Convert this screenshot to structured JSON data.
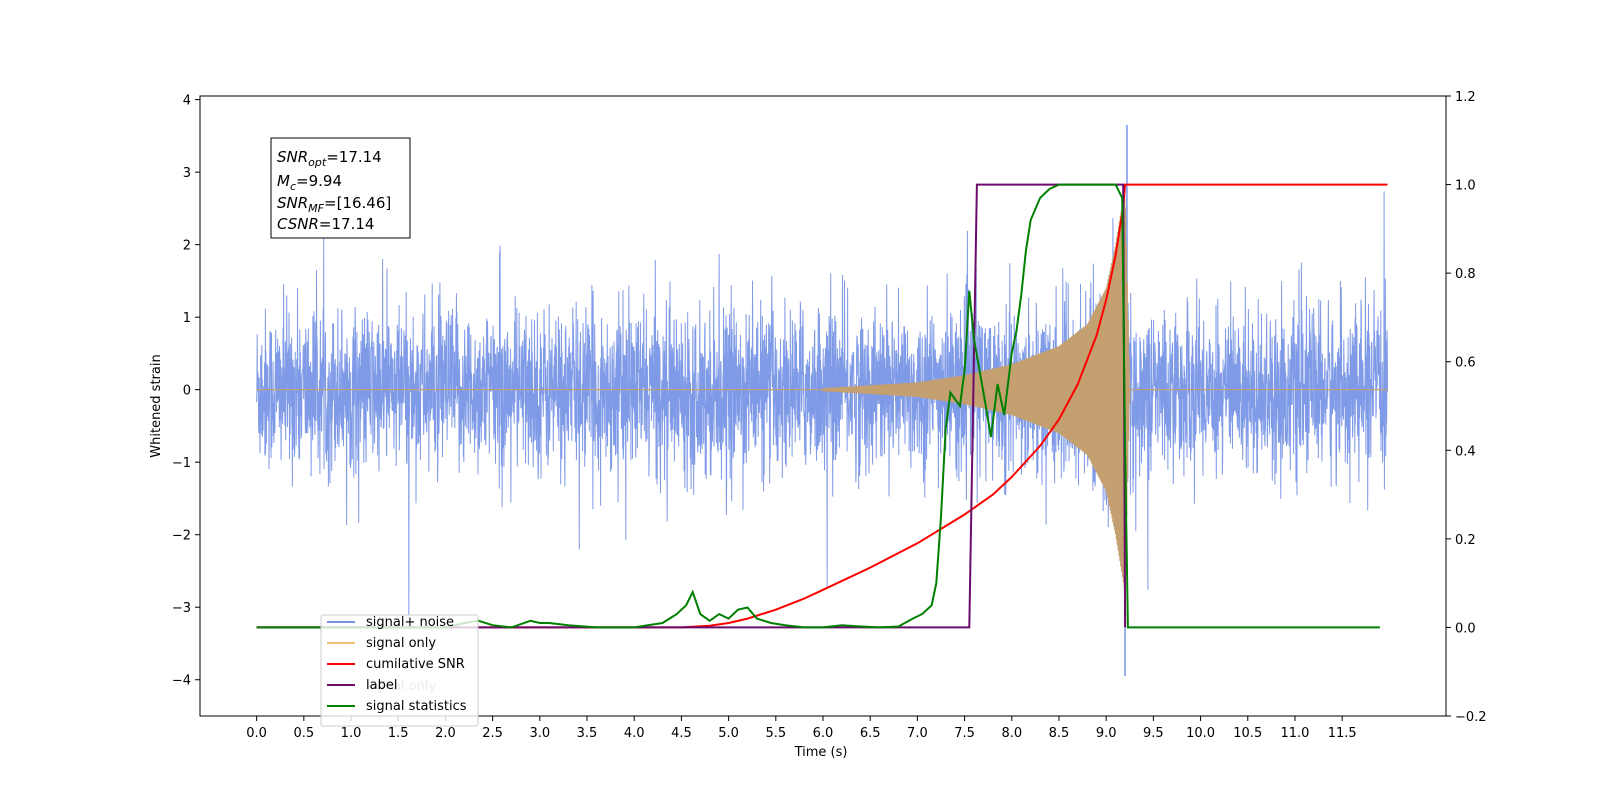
{
  "chart_data": {
    "type": "line",
    "xlabel": "Time (s)",
    "ylabel": "Whitened strain",
    "xlim": [
      -0.6,
      12.6
    ],
    "ylim": [
      -4.5,
      4.05
    ],
    "y2lim": [
      -0.2,
      1.2
    ],
    "x_ticks": [
      "0.0",
      "0.5",
      "1.0",
      "1.5",
      "2.0",
      "2.5",
      "3.0",
      "3.5",
      "4.0",
      "4.5",
      "5.0",
      "5.5",
      "6.0",
      "6.5",
      "7.0",
      "7.5",
      "8.0",
      "8.5",
      "9.0",
      "9.5",
      "10.0",
      "10.5",
      "11.0",
      "11.5"
    ],
    "y_ticks": [
      "4",
      "3",
      "2",
      "1",
      "0",
      "−1",
      "−2",
      "−3",
      "−4"
    ],
    "y2_ticks": [
      "1.2",
      "1.0",
      "0.8",
      "0.6",
      "0.4",
      "0.2",
      "0.0",
      "−0.2"
    ],
    "annotation": {
      "snr_opt": {
        "base": "SNR",
        "sub": "opt",
        "value": "=17.14"
      },
      "mc": {
        "base": "M",
        "sub": "c",
        "value": "=9.94"
      },
      "snr_mf": {
        "base": "SNR",
        "sub": "MF",
        "value": "=[16.46]"
      },
      "csnr": {
        "base": "CSNR",
        "value": "=17.14"
      }
    },
    "legend": {
      "placement": "lower-left",
      "entries": [
        {
          "label": "signal+ noise",
          "color": "#7895e6"
        },
        {
          "label": "signal only",
          "color": "#f6c27a"
        },
        {
          "label": "cumilative SNR",
          "color": "#ff0000"
        },
        {
          "label": "label",
          "color": "#6a0a6a"
        },
        {
          "label": "signal statistics",
          "color": "#008000"
        }
      ],
      "hidden_text": "signal only"
    },
    "series": [
      {
        "name": "signal+ noise",
        "axis": "left",
        "color": "#7895e6",
        "x_range": [
          0.0,
          11.98
        ],
        "amplitude": 1.8,
        "peak": [
          9.22,
          3.65
        ],
        "min": [
          9.2,
          -3.95
        ]
      },
      {
        "name": "signal only",
        "axis": "left",
        "color": "#c4a071",
        "x_range": [
          0.0,
          11.98
        ],
        "chirp_start": 6.0,
        "merger": 9.2,
        "envelope": [
          [
            6.0,
            0.02
          ],
          [
            7.0,
            0.1
          ],
          [
            7.5,
            0.2
          ],
          [
            8.0,
            0.35
          ],
          [
            8.5,
            0.6
          ],
          [
            8.8,
            0.9
          ],
          [
            9.0,
            1.4
          ],
          [
            9.1,
            2.0
          ],
          [
            9.2,
            2.8
          ],
          [
            9.25,
            0.0
          ]
        ]
      },
      {
        "name": "cumilative SNR",
        "axis": "right",
        "color": "#ff0000",
        "x": [
          0.0,
          4.5,
          4.8,
          5.0,
          5.2,
          5.5,
          5.8,
          6.0,
          6.5,
          7.0,
          7.5,
          7.8,
          8.0,
          8.3,
          8.5,
          8.7,
          8.9,
          9.0,
          9.1,
          9.18,
          9.2,
          9.25,
          11.98
        ],
        "y": [
          0.0,
          0.0,
          0.004,
          0.01,
          0.02,
          0.04,
          0.065,
          0.085,
          0.135,
          0.19,
          0.255,
          0.3,
          0.34,
          0.41,
          0.47,
          0.55,
          0.66,
          0.74,
          0.84,
          0.95,
          1.0,
          1.0,
          1.0
        ]
      },
      {
        "name": "label",
        "axis": "right",
        "color": "#6a0a6a",
        "x": [
          0.0,
          7.55,
          7.63,
          9.18,
          9.2
        ],
        "y": [
          0.0,
          0.0,
          1.0,
          1.0,
          0.0
        ]
      },
      {
        "name": "signal statistics",
        "axis": "right",
        "color": "#008000",
        "x": [
          0.0,
          2.0,
          2.2,
          2.35,
          2.5,
          2.7,
          2.9,
          3.0,
          3.1,
          3.3,
          3.6,
          4.0,
          4.3,
          4.45,
          4.55,
          4.62,
          4.7,
          4.8,
          4.9,
          5.0,
          5.1,
          5.2,
          5.3,
          5.45,
          5.6,
          5.8,
          6.0,
          6.2,
          6.4,
          6.6,
          6.8,
          6.95,
          7.05,
          7.15,
          7.2,
          7.25,
          7.3,
          7.35,
          7.45,
          7.5,
          7.55,
          7.6,
          7.7,
          7.78,
          7.85,
          7.92,
          8.0,
          8.05,
          8.1,
          8.15,
          8.2,
          8.3,
          8.4,
          8.5,
          9.0,
          9.1,
          9.17,
          9.2,
          9.23,
          9.25,
          11.9
        ],
        "y": [
          0.0,
          0.0,
          0.01,
          0.015,
          0.005,
          0.0,
          0.015,
          0.01,
          0.01,
          0.005,
          0.0,
          0.0,
          0.01,
          0.03,
          0.05,
          0.08,
          0.03,
          0.015,
          0.03,
          0.02,
          0.04,
          0.045,
          0.02,
          0.01,
          0.005,
          0.0,
          0.0,
          0.005,
          0.002,
          0.0,
          0.002,
          0.02,
          0.03,
          0.05,
          0.1,
          0.25,
          0.45,
          0.53,
          0.5,
          0.58,
          0.76,
          0.65,
          0.53,
          0.43,
          0.55,
          0.48,
          0.62,
          0.67,
          0.75,
          0.85,
          0.92,
          0.97,
          0.99,
          1.0,
          1.0,
          1.0,
          0.97,
          0.4,
          0.0,
          0.0,
          0.0
        ]
      }
    ]
  }
}
